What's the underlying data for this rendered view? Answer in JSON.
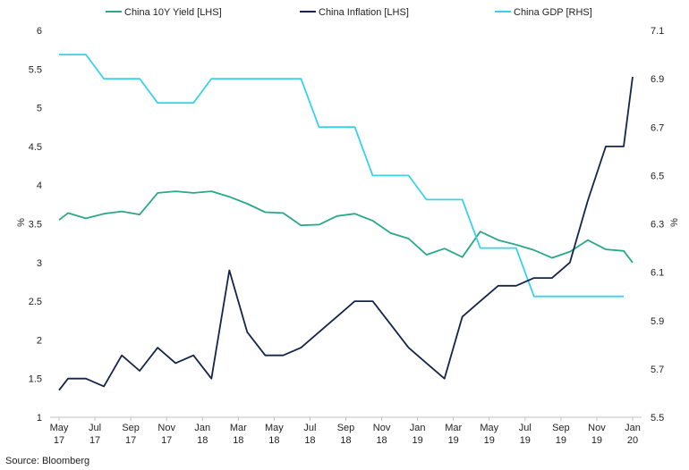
{
  "chart_data": {
    "type": "line",
    "title": "",
    "source": "Source: Bloomberg",
    "x_ticks": [
      {
        "line1": "May",
        "line2": "17"
      },
      {
        "line1": "Jul",
        "line2": "17"
      },
      {
        "line1": "Sep",
        "line2": "17"
      },
      {
        "line1": "Nov",
        "line2": "17"
      },
      {
        "line1": "Jan",
        "line2": "18"
      },
      {
        "line1": "Mar",
        "line2": "18"
      },
      {
        "line1": "May",
        "line2": "18"
      },
      {
        "line1": "Jul",
        "line2": "18"
      },
      {
        "line1": "Sep",
        "line2": "18"
      },
      {
        "line1": "Nov",
        "line2": "18"
      },
      {
        "line1": "Jan",
        "line2": "19"
      },
      {
        "line1": "Mar",
        "line2": "19"
      },
      {
        "line1": "May",
        "line2": "19"
      },
      {
        "line1": "Jul",
        "line2": "19"
      },
      {
        "line1": "Sep",
        "line2": "19"
      },
      {
        "line1": "Nov",
        "line2": "19"
      },
      {
        "line1": "Jan",
        "line2": "20"
      }
    ],
    "x_range_months": [
      0,
      32
    ],
    "y_left": {
      "label": "%",
      "min": 1,
      "max": 6,
      "ticks": [
        "1",
        "1.5",
        "2",
        "2.5",
        "3",
        "3.5",
        "4",
        "4.5",
        "5",
        "5.5",
        "6"
      ]
    },
    "y_right": {
      "label": "%",
      "min": 5.5,
      "max": 7.1,
      "ticks": [
        "5.5",
        "5.7",
        "5.9",
        "6.1",
        "6.3",
        "6.5",
        "6.7",
        "6.9",
        "7.1"
      ]
    },
    "series": [
      {
        "name": "China 10Y Yield [LHS]",
        "axis": "left",
        "color": "#2aa88a",
        "points": [
          [
            0,
            3.55
          ],
          [
            0.5,
            3.64
          ],
          [
            1.5,
            3.57
          ],
          [
            2.5,
            3.63
          ],
          [
            3.5,
            3.66
          ],
          [
            4.5,
            3.62
          ],
          [
            5.5,
            3.9
          ],
          [
            6.5,
            3.92
          ],
          [
            7.5,
            3.9
          ],
          [
            8.5,
            3.92
          ],
          [
            9.5,
            3.85
          ],
          [
            10.5,
            3.76
          ],
          [
            11.5,
            3.65
          ],
          [
            12.5,
            3.64
          ],
          [
            13.5,
            3.48
          ],
          [
            14.5,
            3.49
          ],
          [
            15.5,
            3.6
          ],
          [
            16.5,
            3.63
          ],
          [
            17.5,
            3.54
          ],
          [
            18.5,
            3.38
          ],
          [
            19.5,
            3.31
          ],
          [
            20.5,
            3.1
          ],
          [
            21.5,
            3.18
          ],
          [
            22.5,
            3.07
          ],
          [
            23.5,
            3.4
          ],
          [
            24.5,
            3.29
          ],
          [
            25.5,
            3.23
          ],
          [
            26.5,
            3.16
          ],
          [
            27.5,
            3.06
          ],
          [
            28.5,
            3.14
          ],
          [
            29.5,
            3.29
          ],
          [
            30.5,
            3.17
          ],
          [
            31.5,
            3.15
          ],
          [
            32,
            3.0
          ]
        ]
      },
      {
        "name": "China Inflation [LHS]",
        "axis": "left",
        "color": "#14244b",
        "points": [
          [
            0,
            1.35
          ],
          [
            0.5,
            1.5
          ],
          [
            1.5,
            1.5
          ],
          [
            2.5,
            1.4
          ],
          [
            3.5,
            1.8
          ],
          [
            4.5,
            1.6
          ],
          [
            5.5,
            1.9
          ],
          [
            6.5,
            1.7
          ],
          [
            7.5,
            1.8
          ],
          [
            8.5,
            1.5
          ],
          [
            9.5,
            2.9
          ],
          [
            10.5,
            2.1
          ],
          [
            11.5,
            1.8
          ],
          [
            12.5,
            1.8
          ],
          [
            13.5,
            1.9
          ],
          [
            14.5,
            2.1
          ],
          [
            15.5,
            2.3
          ],
          [
            16.5,
            2.5
          ],
          [
            17.5,
            2.5
          ],
          [
            18.5,
            2.2
          ],
          [
            19.5,
            1.9
          ],
          [
            20.5,
            1.7
          ],
          [
            21.5,
            1.5
          ],
          [
            22.5,
            2.3
          ],
          [
            23.5,
            2.5
          ],
          [
            24.5,
            2.7
          ],
          [
            25.5,
            2.7
          ],
          [
            26.5,
            2.8
          ],
          [
            27.5,
            2.8
          ],
          [
            28.5,
            3.0
          ],
          [
            29.5,
            3.8
          ],
          [
            30.5,
            4.5
          ],
          [
            31.5,
            4.5
          ],
          [
            32,
            5.4
          ]
        ]
      },
      {
        "name": "China GDP [RHS]",
        "axis": "right",
        "color": "#38d2ee",
        "points": [
          [
            0,
            7.0
          ],
          [
            1.5,
            7.0
          ],
          [
            2.5,
            6.9
          ],
          [
            4.5,
            6.9
          ],
          [
            5.5,
            6.8
          ],
          [
            7.5,
            6.8
          ],
          [
            8.5,
            6.9
          ],
          [
            13.5,
            6.9
          ],
          [
            14.5,
            6.7
          ],
          [
            16.5,
            6.7
          ],
          [
            17.5,
            6.5
          ],
          [
            19.5,
            6.5
          ],
          [
            20.5,
            6.4
          ],
          [
            22.5,
            6.4
          ],
          [
            23.5,
            6.2
          ],
          [
            25.5,
            6.2
          ],
          [
            26.5,
            6.0
          ],
          [
            31.5,
            6.0
          ]
        ]
      }
    ],
    "legend_position": "top"
  }
}
